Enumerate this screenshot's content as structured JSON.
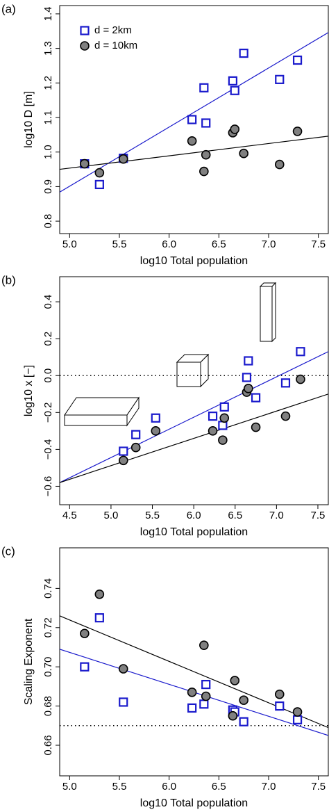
{
  "chart_data": [
    {
      "type": "scatter",
      "panel_label": "(a)",
      "x_label": "log10 Total population",
      "y_label": "log10 D [m]",
      "x": [
        5.15,
        5.3,
        5.54,
        6.23,
        6.35,
        6.37,
        6.64,
        6.66,
        6.75,
        7.11,
        7.29
      ],
      "series": [
        {
          "name": "d = 2km",
          "color": "#1a1acc",
          "marker": "square",
          "values": [
            0.966,
            0.906,
            0.982,
            1.094,
            1.186,
            1.084,
            1.206,
            1.178,
            1.286,
            1.21,
            1.266
          ]
        },
        {
          "name": "d = 10km",
          "color": "#808080",
          "marker": "circle",
          "values": [
            0.966,
            0.94,
            0.98,
            1.032,
            0.944,
            0.992,
            1.056,
            1.066,
            0.996,
            0.964,
            1.06
          ]
        }
      ],
      "lines": [
        {
          "color": "#1a1acc",
          "x": [
            4.9,
            7.6
          ],
          "y": [
            0.884,
            1.346
          ]
        },
        {
          "color": "#000000",
          "x": [
            4.9,
            7.6
          ],
          "y": [
            0.95,
            1.046
          ]
        }
      ],
      "legend": "top-left",
      "xlim": [
        4.9,
        7.6
      ],
      "xticks": [
        {
          "value": 5,
          "label": "5.0"
        },
        5.5,
        {
          "value": 6,
          "label": "6.0"
        },
        6.5,
        {
          "value": 7,
          "label": "7.0"
        },
        7.5
      ],
      "ylim": [
        0.764,
        1.424
      ],
      "yticks": [
        0.8,
        0.9,
        {
          "value": 1,
          "label": "1.0"
        },
        1.1,
        1.2,
        1.3,
        1.4
      ]
    },
    {
      "type": "scatter",
      "panel_label": "(b)",
      "x_label": "log10 Total population",
      "y_label": "log10 x [−]",
      "x": [
        5.15,
        5.3,
        5.54,
        6.23,
        6.35,
        6.37,
        6.64,
        6.66,
        6.75,
        7.11,
        7.29
      ],
      "series": [
        {
          "color": "#1a1acc",
          "marker": "square",
          "values": [
            -0.41,
            -0.32,
            -0.23,
            -0.22,
            -0.27,
            -0.17,
            -0.01,
            0.08,
            -0.12,
            -0.04,
            0.13
          ]
        },
        {
          "color": "#808080",
          "marker": "circle",
          "values": [
            -0.46,
            -0.39,
            -0.3,
            -0.3,
            -0.35,
            -0.23,
            -0.09,
            -0.07,
            -0.28,
            -0.22,
            -0.02
          ]
        }
      ],
      "lines": [
        {
          "color": "#1a1acc",
          "x": [
            4.38,
            7.626
          ],
          "y": [
            -0.58,
            0.13
          ]
        },
        {
          "color": "#000000",
          "x": [
            4.38,
            7.626
          ],
          "y": [
            -0.58,
            -0.1
          ]
        }
      ],
      "hline": 0,
      "xlim": [
        4.38,
        7.626
      ],
      "xticks": [
        4.5,
        {
          "value": 5,
          "label": "5.0"
        },
        5.5,
        {
          "value": 6,
          "label": "6.0"
        },
        6.5,
        {
          "value": 7,
          "label": "7.0"
        },
        7.5
      ],
      "ylim": [
        -0.7,
        0.536
      ],
      "yticks": [
        {
          "value": -0.6,
          "label": "−0.6"
        },
        {
          "value": -0.4,
          "label": "−0.4"
        },
        {
          "value": -0.2,
          "label": "−0.2"
        },
        {
          "value": 0,
          "label": "0.0"
        },
        0.2,
        0.4
      ]
    },
    {
      "type": "scatter",
      "panel_label": "(c)",
      "x_label": "log10 Total population",
      "y_label": "Scaling Exponent",
      "x": [
        5.15,
        5.3,
        5.54,
        6.23,
        6.35,
        6.37,
        6.64,
        6.66,
        6.75,
        7.11,
        7.29
      ],
      "series": [
        {
          "color": "#1a1acc",
          "marker": "square",
          "values": [
            0.7,
            0.725,
            0.682,
            0.679,
            0.681,
            0.691,
            0.678,
            0.677,
            0.672,
            0.68,
            0.673
          ]
        },
        {
          "color": "#808080",
          "marker": "circle",
          "values": [
            0.717,
            0.737,
            0.699,
            0.687,
            0.711,
            0.685,
            0.675,
            0.693,
            0.683,
            0.686,
            0.677
          ]
        }
      ],
      "lines": [
        {
          "color": "#1a1acc",
          "x": [
            4.9,
            7.6
          ],
          "y": [
            0.709,
            0.665
          ]
        },
        {
          "color": "#000000",
          "x": [
            4.9,
            7.6
          ],
          "y": [
            0.726,
            0.669
          ]
        }
      ],
      "hline": 0.67,
      "xlim": [
        4.9,
        7.6
      ],
      "xticks": [
        {
          "value": 5,
          "label": "5.0"
        },
        5.5,
        {
          "value": 6,
          "label": "6.0"
        },
        6.5,
        {
          "value": 7,
          "label": "7.0"
        },
        7.5
      ],
      "ylim": [
        0.6444,
        0.7607
      ],
      "yticks": [
        0.66,
        0.68,
        {
          "value": 0.7,
          "label": "0.70"
        },
        0.72,
        0.74
      ]
    }
  ]
}
